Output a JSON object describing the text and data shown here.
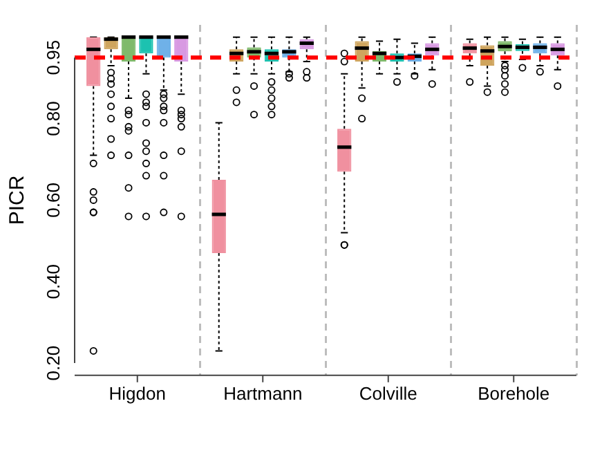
{
  "chart_data": {
    "type": "box",
    "ylabel": "PICR",
    "categories": [
      "Higdon",
      "Hartmann",
      "Colville",
      "Borehole"
    ],
    "ylim": [
      0.17,
      1.03
    ],
    "yticks": [
      {
        "value": 0.2,
        "label": "0.20"
      },
      {
        "value": 0.4,
        "label": "0.40"
      },
      {
        "value": 0.6,
        "label": "0.60"
      },
      {
        "value": 0.8,
        "label": "0.80"
      },
      0.95
    ],
    "grid": "x",
    "legend": false,
    "ref_lines": [
      {
        "axis": "y",
        "value": 0.95,
        "color": "#ff0000",
        "line_style": "dashed"
      }
    ],
    "series": [
      {
        "color": "#f0909f",
        "boxes": [
          {
            "low": 0.71,
            "q1": 0.88,
            "median": 0.97,
            "q3": 1.0,
            "high": 1.0,
            "outliers": [
              0.69,
              0.62,
              0.6,
              0.57,
              0.57,
              0.23
            ]
          },
          {
            "low": 0.23,
            "q1": 0.47,
            "median": 0.565,
            "q3": 0.65,
            "high": 0.79
          },
          {
            "low": 0.52,
            "q1": 0.67,
            "median": 0.73,
            "q3": 0.775,
            "high": 0.91,
            "outliers": [
              0.96,
              0.94,
              0.49,
              0.49
            ]
          },
          {
            "low": 0.93,
            "q1": 0.96,
            "median": 0.973,
            "q3": 0.985,
            "high": 0.995,
            "outliers": [
              0.89
            ]
          }
        ]
      },
      {
        "color": "#cfa55e",
        "boxes": [
          {
            "low": 0.93,
            "q1": 0.97,
            "median": 0.995,
            "q3": 1.0,
            "high": 1.0,
            "outliers": [
              0.913,
              0.898,
              0.885,
              0.86,
              0.83,
              0.8,
              0.75,
              0.71
            ]
          },
          {
            "low": 0.91,
            "q1": 0.94,
            "median": 0.96,
            "q3": 0.97,
            "high": 1.0,
            "outliers": [
              0.87,
              0.84
            ]
          },
          {
            "low": 0.875,
            "q1": 0.94,
            "median": 0.973,
            "q3": 0.99,
            "high": 1.0,
            "outliers": [
              0.85,
              0.8
            ]
          },
          {
            "low": 0.88,
            "q1": 0.93,
            "median": 0.966,
            "q3": 0.98,
            "high": 1.0,
            "outliers": [
              0.865
            ]
          }
        ]
      },
      {
        "color": "#7fba6b",
        "boxes": [
          {
            "low": 0.85,
            "q1": 0.94,
            "median": 1.0,
            "q3": 1.0,
            "high": 1.0,
            "outliers": [
              0.82,
              0.81,
              0.78,
              0.77,
              0.71,
              0.63,
              0.56
            ]
          },
          {
            "low": 0.91,
            "q1": 0.95,
            "median": 0.964,
            "q3": 0.975,
            "high": 1.0,
            "outliers": [
              0.88,
              0.81
            ]
          },
          {
            "low": 0.91,
            "q1": 0.94,
            "median": 0.96,
            "q3": 0.966,
            "high": 0.99
          },
          {
            "low": 0.94,
            "q1": 0.965,
            "median": 0.977,
            "q3": 0.99,
            "high": 1.0,
            "outliers": [
              0.93,
              0.92,
              0.905,
              0.885,
              0.865
            ]
          }
        ]
      },
      {
        "color": "#1cc2b0",
        "boxes": [
          {
            "low": 0.91,
            "q1": 0.96,
            "median": 1.0,
            "q3": 1.0,
            "high": 1.0,
            "outliers": [
              0.86,
              0.84,
              0.83,
              0.79,
              0.74,
              0.72,
              0.69,
              0.66,
              0.56
            ]
          },
          {
            "low": 0.91,
            "q1": 0.94,
            "median": 0.96,
            "q3": 0.97,
            "high": 1.0,
            "outliers": [
              0.89,
              0.87,
              0.85,
              0.83,
              0.81
            ]
          },
          {
            "low": 0.91,
            "q1": 0.94,
            "median": 0.95,
            "q3": 0.96,
            "high": 0.995,
            "outliers": [
              0.89
            ]
          },
          {
            "low": 0.945,
            "q1": 0.966,
            "median": 0.975,
            "q3": 0.983,
            "high": 0.995,
            "outliers": [
              0.925
            ]
          }
        ]
      },
      {
        "color": "#6fb1e8",
        "boxes": [
          {
            "low": 0.87,
            "q1": 0.95,
            "median": 1.0,
            "q3": 1.0,
            "high": 1.0,
            "outliers": [
              0.86,
              0.85,
              0.83,
              0.82,
              0.79,
              0.71,
              0.66,
              0.57
            ]
          },
          {
            "low": 0.915,
            "q1": 0.95,
            "median": 0.964,
            "q3": 0.97,
            "high": 1.0,
            "outliers": [
              0.91,
              0.9
            ]
          },
          {
            "low": 0.91,
            "q1": 0.94,
            "median": 0.953,
            "q3": 0.96,
            "high": 0.985,
            "outliers": [
              0.905
            ]
          },
          {
            "low": 0.93,
            "q1": 0.96,
            "median": 0.975,
            "q3": 0.985,
            "high": 1.0,
            "outliers": [
              0.915
            ]
          }
        ]
      },
      {
        "color": "#d899e2",
        "boxes": [
          {
            "low": 0.86,
            "q1": 0.94,
            "median": 1.0,
            "q3": 1.0,
            "high": 1.0,
            "outliers": [
              0.82,
              0.81,
              0.8,
              0.78,
              0.72,
              0.56
            ]
          },
          {
            "low": 0.94,
            "q1": 0.97,
            "median": 0.985,
            "q3": 0.995,
            "high": 1.0,
            "outliers": [
              0.915,
              0.9
            ]
          },
          {
            "low": 0.92,
            "q1": 0.955,
            "median": 0.97,
            "q3": 0.985,
            "high": 1.0,
            "outliers": [
              0.885
            ]
          },
          {
            "low": 0.92,
            "q1": 0.955,
            "median": 0.97,
            "q3": 0.985,
            "high": 1.0,
            "outliers": [
              0.88
            ]
          }
        ]
      }
    ]
  }
}
